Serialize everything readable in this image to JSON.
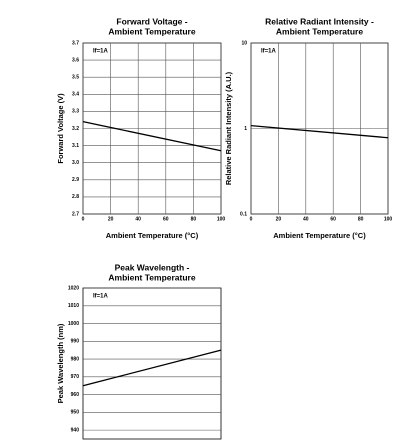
{
  "chart_data": [
    {
      "type": "line",
      "title": [
        "Forward Voltage -",
        "Ambient Temperature"
      ],
      "x_label": "Ambient Temperature (°C)",
      "y_label": "Forward Voltage (V)",
      "annotation": "If=1A",
      "x": [
        0,
        100
      ],
      "values": [
        3.24,
        3.07
      ],
      "color": "#000000",
      "xlim": [
        0,
        100
      ],
      "xticks": [
        0,
        20,
        40,
        60,
        80,
        100
      ],
      "ylim": [
        2.7,
        3.7
      ],
      "yticks": [
        2.7,
        2.8,
        2.9,
        {
          "value": 3,
          "label": "3.0"
        },
        3.1,
        3.2,
        3.3,
        3.4,
        3.5,
        3.6,
        3.7
      ],
      "log": false,
      "grid": true
    },
    {
      "type": "line",
      "title": [
        "Relative Radiant Intensity -",
        "Ambient Temperature"
      ],
      "x_label": "Ambient Temperature (°C)",
      "y_label": "Relative Radiant Intensity (A.U.)",
      "annotation": "If=1A",
      "x": [
        0,
        100
      ],
      "values": [
        1.08,
        0.78
      ],
      "color": "#000000",
      "xlim": [
        0,
        100
      ],
      "xticks": [
        0,
        20,
        40,
        60,
        80,
        100
      ],
      "ylim": [
        0.1,
        10
      ],
      "yticks": [
        0.1,
        1,
        10
      ],
      "log": true,
      "grid": true
    },
    {
      "type": "line",
      "title": [
        "Peak Wavelength -",
        "Ambient Temperature"
      ],
      "y_label": "Peak Wavelength (nm)",
      "annotation": "If=1A",
      "x": [
        0,
        100
      ],
      "values": [
        965,
        985
      ],
      "color": "#000000",
      "xlim": [
        0,
        100
      ],
      "ylim": [
        935,
        1020
      ],
      "yticks": [
        940,
        950,
        960,
        970,
        980,
        990,
        1000,
        1010,
        1020
      ],
      "log": false,
      "grid": true
    }
  ]
}
